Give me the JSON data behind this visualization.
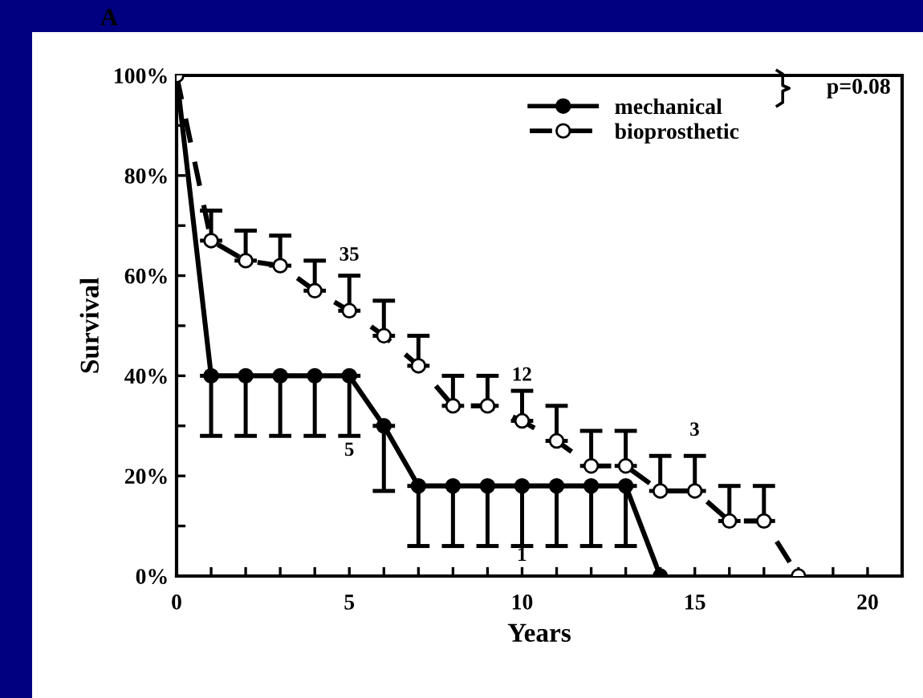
{
  "chart_data": {
    "type": "line",
    "xlabel": "Years",
    "ylabel": "Survival",
    "xlim": [
      0,
      21
    ],
    "xticks": [
      0,
      {
        "value": 1,
        "label": null
      },
      {
        "value": 2,
        "label": null
      },
      {
        "value": 3,
        "label": null
      },
      {
        "value": 4,
        "label": null
      },
      5,
      {
        "value": 6,
        "label": null
      },
      {
        "value": 7,
        "label": null
      },
      {
        "value": 8,
        "label": null
      },
      {
        "value": 9,
        "label": null
      },
      10,
      {
        "value": 11,
        "label": null
      },
      {
        "value": 12,
        "label": null
      },
      {
        "value": 13,
        "label": null
      },
      {
        "value": 14,
        "label": null
      },
      15,
      {
        "value": 16,
        "label": null
      },
      {
        "value": 17,
        "label": null
      },
      {
        "value": 18,
        "label": null
      },
      {
        "value": 19,
        "label": null
      },
      20
    ],
    "ylim": [
      0,
      100
    ],
    "yticks": [
      {
        "value": 0,
        "label": "0%"
      },
      {
        "value": 10,
        "label": null
      },
      {
        "value": 20,
        "label": "20%"
      },
      {
        "value": 30,
        "label": null
      },
      {
        "value": 40,
        "label": "40%"
      },
      {
        "value": 50,
        "label": null
      },
      {
        "value": 60,
        "label": "60%"
      },
      {
        "value": 70,
        "label": null
      },
      {
        "value": 80,
        "label": "80%"
      },
      {
        "value": 90,
        "label": null
      },
      {
        "value": 100,
        "label": "100%"
      }
    ],
    "grid": false,
    "legend": "top right",
    "marker": "circle",
    "series": [
      {
        "name": "mechanical",
        "color": "#000000",
        "line_style": "solid",
        "x": [
          0,
          1,
          2,
          3,
          4,
          5,
          6,
          7,
          8,
          9,
          10,
          11,
          12,
          13,
          14
        ],
        "values": [
          100,
          40,
          40,
          40,
          40,
          40,
          30,
          18,
          18,
          18,
          18,
          18,
          18,
          18,
          0
        ],
        "errors": [
          null,
          [
            28,
            40
          ],
          [
            28,
            40
          ],
          [
            28,
            40
          ],
          [
            28,
            40
          ],
          [
            28,
            40
          ],
          [
            17,
            30
          ],
          [
            6,
            18
          ],
          [
            6,
            18
          ],
          [
            6,
            18
          ],
          [
            6,
            18
          ],
          [
            6,
            18
          ],
          [
            6,
            18
          ],
          [
            6,
            18
          ],
          null
        ]
      },
      {
        "name": "bioprosthetic",
        "color": "#000000",
        "line_style": "dashed",
        "x": [
          0,
          1,
          2,
          3,
          4,
          5,
          6,
          7,
          8,
          9,
          10,
          11,
          12,
          13,
          14,
          15,
          16,
          17,
          18
        ],
        "values": [
          100,
          67,
          63,
          62,
          57,
          53,
          48,
          42,
          34,
          34,
          31,
          27,
          22,
          22,
          17,
          17,
          11,
          11,
          0
        ],
        "errors": [
          null,
          [
            67,
            73
          ],
          [
            63,
            69
          ],
          [
            62,
            68
          ],
          [
            57,
            63
          ],
          [
            53,
            60
          ],
          [
            48,
            55
          ],
          [
            42,
            48
          ],
          [
            34,
            40
          ],
          [
            34,
            40
          ],
          [
            31,
            37
          ],
          [
            27,
            34
          ],
          [
            22,
            29
          ],
          [
            22,
            29
          ],
          [
            17,
            24
          ],
          [
            17,
            24
          ],
          [
            11,
            18
          ],
          [
            11,
            18
          ],
          null
        ]
      }
    ],
    "annotations": [
      "A",
      "p=0.08",
      "35",
      "12",
      "3",
      "5",
      "1"
    ]
  }
}
